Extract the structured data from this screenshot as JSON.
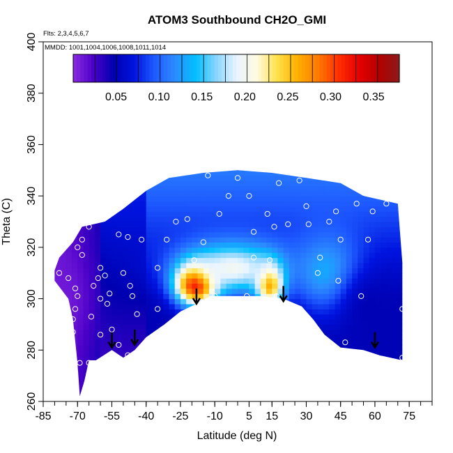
{
  "chart_data": {
    "type": "heatmap",
    "title": "ATOM3 Southbound CH2O_GMI",
    "flights_label": "Flts: 2,3,4,5,6,7",
    "mmdd_label": "MMDD: 1001,1004,1006,1008,1011,1014",
    "xlabel": "Latitude (deg N)",
    "ylabel": "Theta (C)",
    "xlim": [
      -85,
      85
    ],
    "ylim": [
      260,
      400
    ],
    "x_minor_step": 5,
    "x_ticks": [
      -85,
      -70,
      -55,
      -40,
      -25,
      -10,
      5,
      15,
      30,
      45,
      60,
      75
    ],
    "y_ticks": [
      260,
      280,
      300,
      320,
      340,
      360,
      380,
      400
    ],
    "colorbar": {
      "range": [
        0,
        0.38
      ],
      "ticks": [
        0.05,
        0.1,
        0.15,
        0.2,
        0.25,
        0.3,
        0.35
      ],
      "tick_labels": [
        "0.05",
        "0.10",
        "0.15",
        "0.20",
        "0.25",
        "0.30",
        "0.35"
      ],
      "colors": [
        "#8a2be2",
        "#4b00c8",
        "#0000b0",
        "#0014e0",
        "#1e5aff",
        "#2c8cff",
        "#00bfff",
        "#87d4ff",
        "#e8f4ff",
        "#fffbe0",
        "#ffe24a",
        "#ffb000",
        "#ff7a00",
        "#ff3000",
        "#e60000",
        "#b40000",
        "#8b1a1a"
      ]
    },
    "surface_outline": [
      [
        -80,
        311
      ],
      [
        -80,
        307
      ],
      [
        -74,
        300
      ],
      [
        -72,
        292
      ],
      [
        -70,
        275
      ],
      [
        -69,
        262
      ],
      [
        -67,
        268
      ],
      [
        -65,
        276
      ],
      [
        -62,
        276
      ],
      [
        -55,
        280
      ],
      [
        -50,
        277
      ],
      [
        -45,
        280
      ],
      [
        -40,
        285
      ],
      [
        -32,
        290
      ],
      [
        -25,
        295
      ],
      [
        -18,
        298
      ],
      [
        -12,
        301
      ],
      [
        0,
        301
      ],
      [
        10,
        301
      ],
      [
        20,
        300
      ],
      [
        28,
        297
      ],
      [
        33,
        292
      ],
      [
        38,
        286
      ],
      [
        45,
        281
      ],
      [
        55,
        280
      ],
      [
        62,
        278
      ],
      [
        72,
        276
      ],
      [
        72,
        314
      ],
      [
        70,
        337
      ],
      [
        65,
        338
      ],
      [
        55,
        340
      ],
      [
        45,
        345
      ],
      [
        30,
        347
      ],
      [
        15,
        349
      ],
      [
        0,
        350
      ],
      [
        -15,
        349
      ],
      [
        -30,
        347
      ],
      [
        -40,
        342
      ],
      [
        -50,
        335
      ],
      [
        -58,
        330
      ],
      [
        -68,
        328
      ],
      [
        -72,
        322
      ],
      [
        -78,
        316
      ]
    ],
    "field_blobs": [
      {
        "lat": -18,
        "theta": 306,
        "value": 0.38,
        "spread_lat": 9,
        "spread_theta": 8
      },
      {
        "lat": 14,
        "theta": 306,
        "value": 0.31,
        "spread_lat": 6,
        "spread_theta": 8
      },
      {
        "lat": -2,
        "theta": 312,
        "value": 0.2,
        "spread_lat": 22,
        "spread_theta": 10
      },
      {
        "lat": 40,
        "theta": 310,
        "value": 0.14,
        "spread_lat": 15,
        "spread_theta": 15
      },
      {
        "lat": 58,
        "theta": 296,
        "value": 0.05,
        "spread_lat": 15,
        "spread_theta": 18
      },
      {
        "lat": -76,
        "theta": 300,
        "value": 0.01,
        "spread_lat": 12,
        "spread_theta": 20
      }
    ],
    "obs_points": [
      [
        -78,
        310
      ],
      [
        -74,
        308
      ],
      [
        -71,
        304
      ],
      [
        -70,
        301
      ],
      [
        -71,
        296
      ],
      [
        -72,
        292
      ],
      [
        -72,
        287
      ],
      [
        -73,
        276
      ],
      [
        -69,
        275
      ],
      [
        -65,
        275
      ],
      [
        -64,
        293
      ],
      [
        -60,
        300
      ],
      [
        -63,
        305
      ],
      [
        -61,
        308
      ],
      [
        -60,
        312
      ],
      [
        -58,
        309
      ],
      [
        -56,
        302
      ],
      [
        -57,
        298
      ],
      [
        -55,
        288
      ],
      [
        -60,
        286
      ],
      [
        -68,
        317
      ],
      [
        -70,
        320
      ],
      [
        -68,
        323
      ],
      [
        -71,
        327
      ],
      [
        -65,
        328
      ],
      [
        -52,
        325
      ],
      [
        -48,
        324
      ],
      [
        -42,
        323
      ],
      [
        -50,
        310
      ],
      [
        -47,
        305
      ],
      [
        -46,
        301
      ],
      [
        -44,
        294
      ],
      [
        -52,
        282
      ],
      [
        -48,
        278
      ],
      [
        -35,
        296
      ],
      [
        -35,
        312
      ],
      [
        -31,
        323
      ],
      [
        -27,
        330
      ],
      [
        -22,
        331
      ],
      [
        -19,
        315
      ],
      [
        -15,
        322
      ],
      [
        -13,
        348
      ],
      [
        -10,
        301
      ],
      [
        -8,
        333
      ],
      [
        -4,
        340
      ],
      [
        0,
        347
      ],
      [
        5,
        340
      ],
      [
        7,
        326
      ],
      [
        7,
        316
      ],
      [
        4,
        301
      ],
      [
        13,
        333
      ],
      [
        14,
        315
      ],
      [
        17,
        301
      ],
      [
        16,
        328
      ],
      [
        18,
        345
      ],
      [
        22,
        329
      ],
      [
        27,
        346
      ],
      [
        30,
        336
      ],
      [
        31,
        329
      ],
      [
        35,
        310
      ],
      [
        36,
        316
      ],
      [
        40,
        330
      ],
      [
        43,
        334
      ],
      [
        44,
        307
      ],
      [
        45,
        323
      ],
      [
        47,
        283
      ],
      [
        52,
        337
      ],
      [
        54,
        301
      ],
      [
        57,
        323
      ],
      [
        59,
        334
      ],
      [
        65,
        337
      ],
      [
        72,
        296
      ],
      [
        72,
        277
      ]
    ],
    "arrows": [
      {
        "lat": -55,
        "theta": 281
      },
      {
        "lat": -45,
        "theta": 282
      },
      {
        "lat": -18,
        "theta": 298
      },
      {
        "lat": 20,
        "theta": 299
      },
      {
        "lat": 60,
        "theta": 281
      }
    ]
  }
}
